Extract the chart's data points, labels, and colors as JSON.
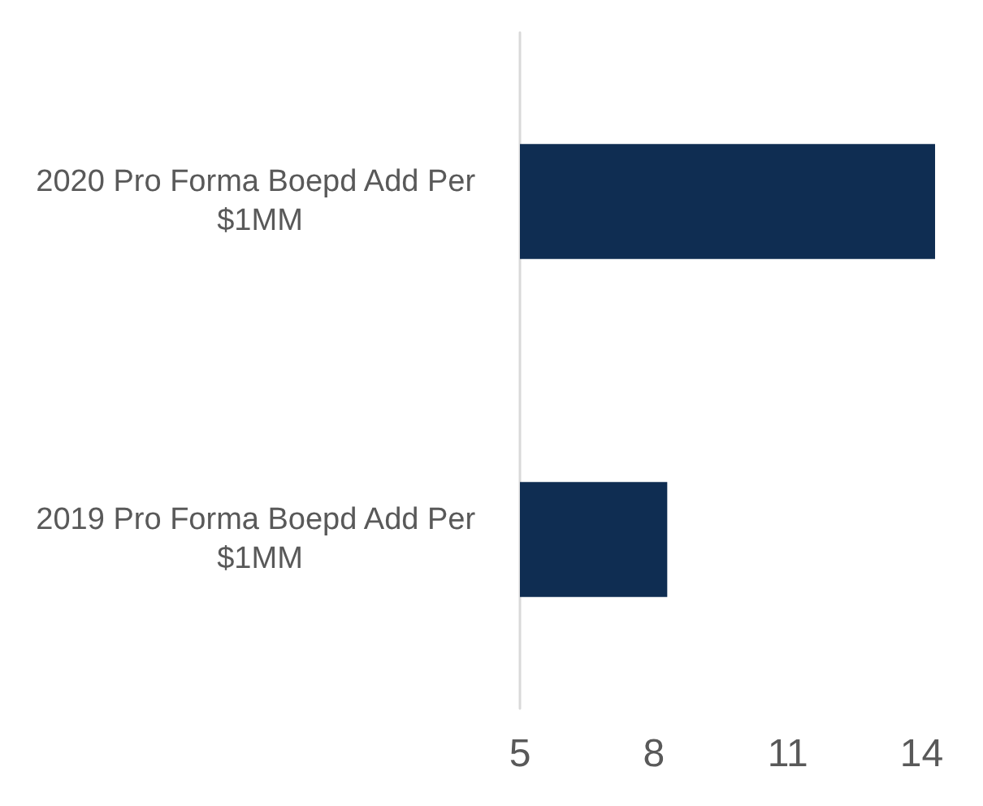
{
  "chart_data": {
    "type": "bar",
    "orientation": "horizontal",
    "categories": [
      "2020 Pro Forma Boepd Add Per $1MM",
      "2019 Pro Forma Boepd Add Per $1MM"
    ],
    "values": [
      14.3,
      8.3
    ],
    "color": "#0f2d52",
    "xlim": [
      5,
      14.5
    ],
    "xticks": [
      5,
      8,
      11,
      14
    ],
    "grid": false
  }
}
